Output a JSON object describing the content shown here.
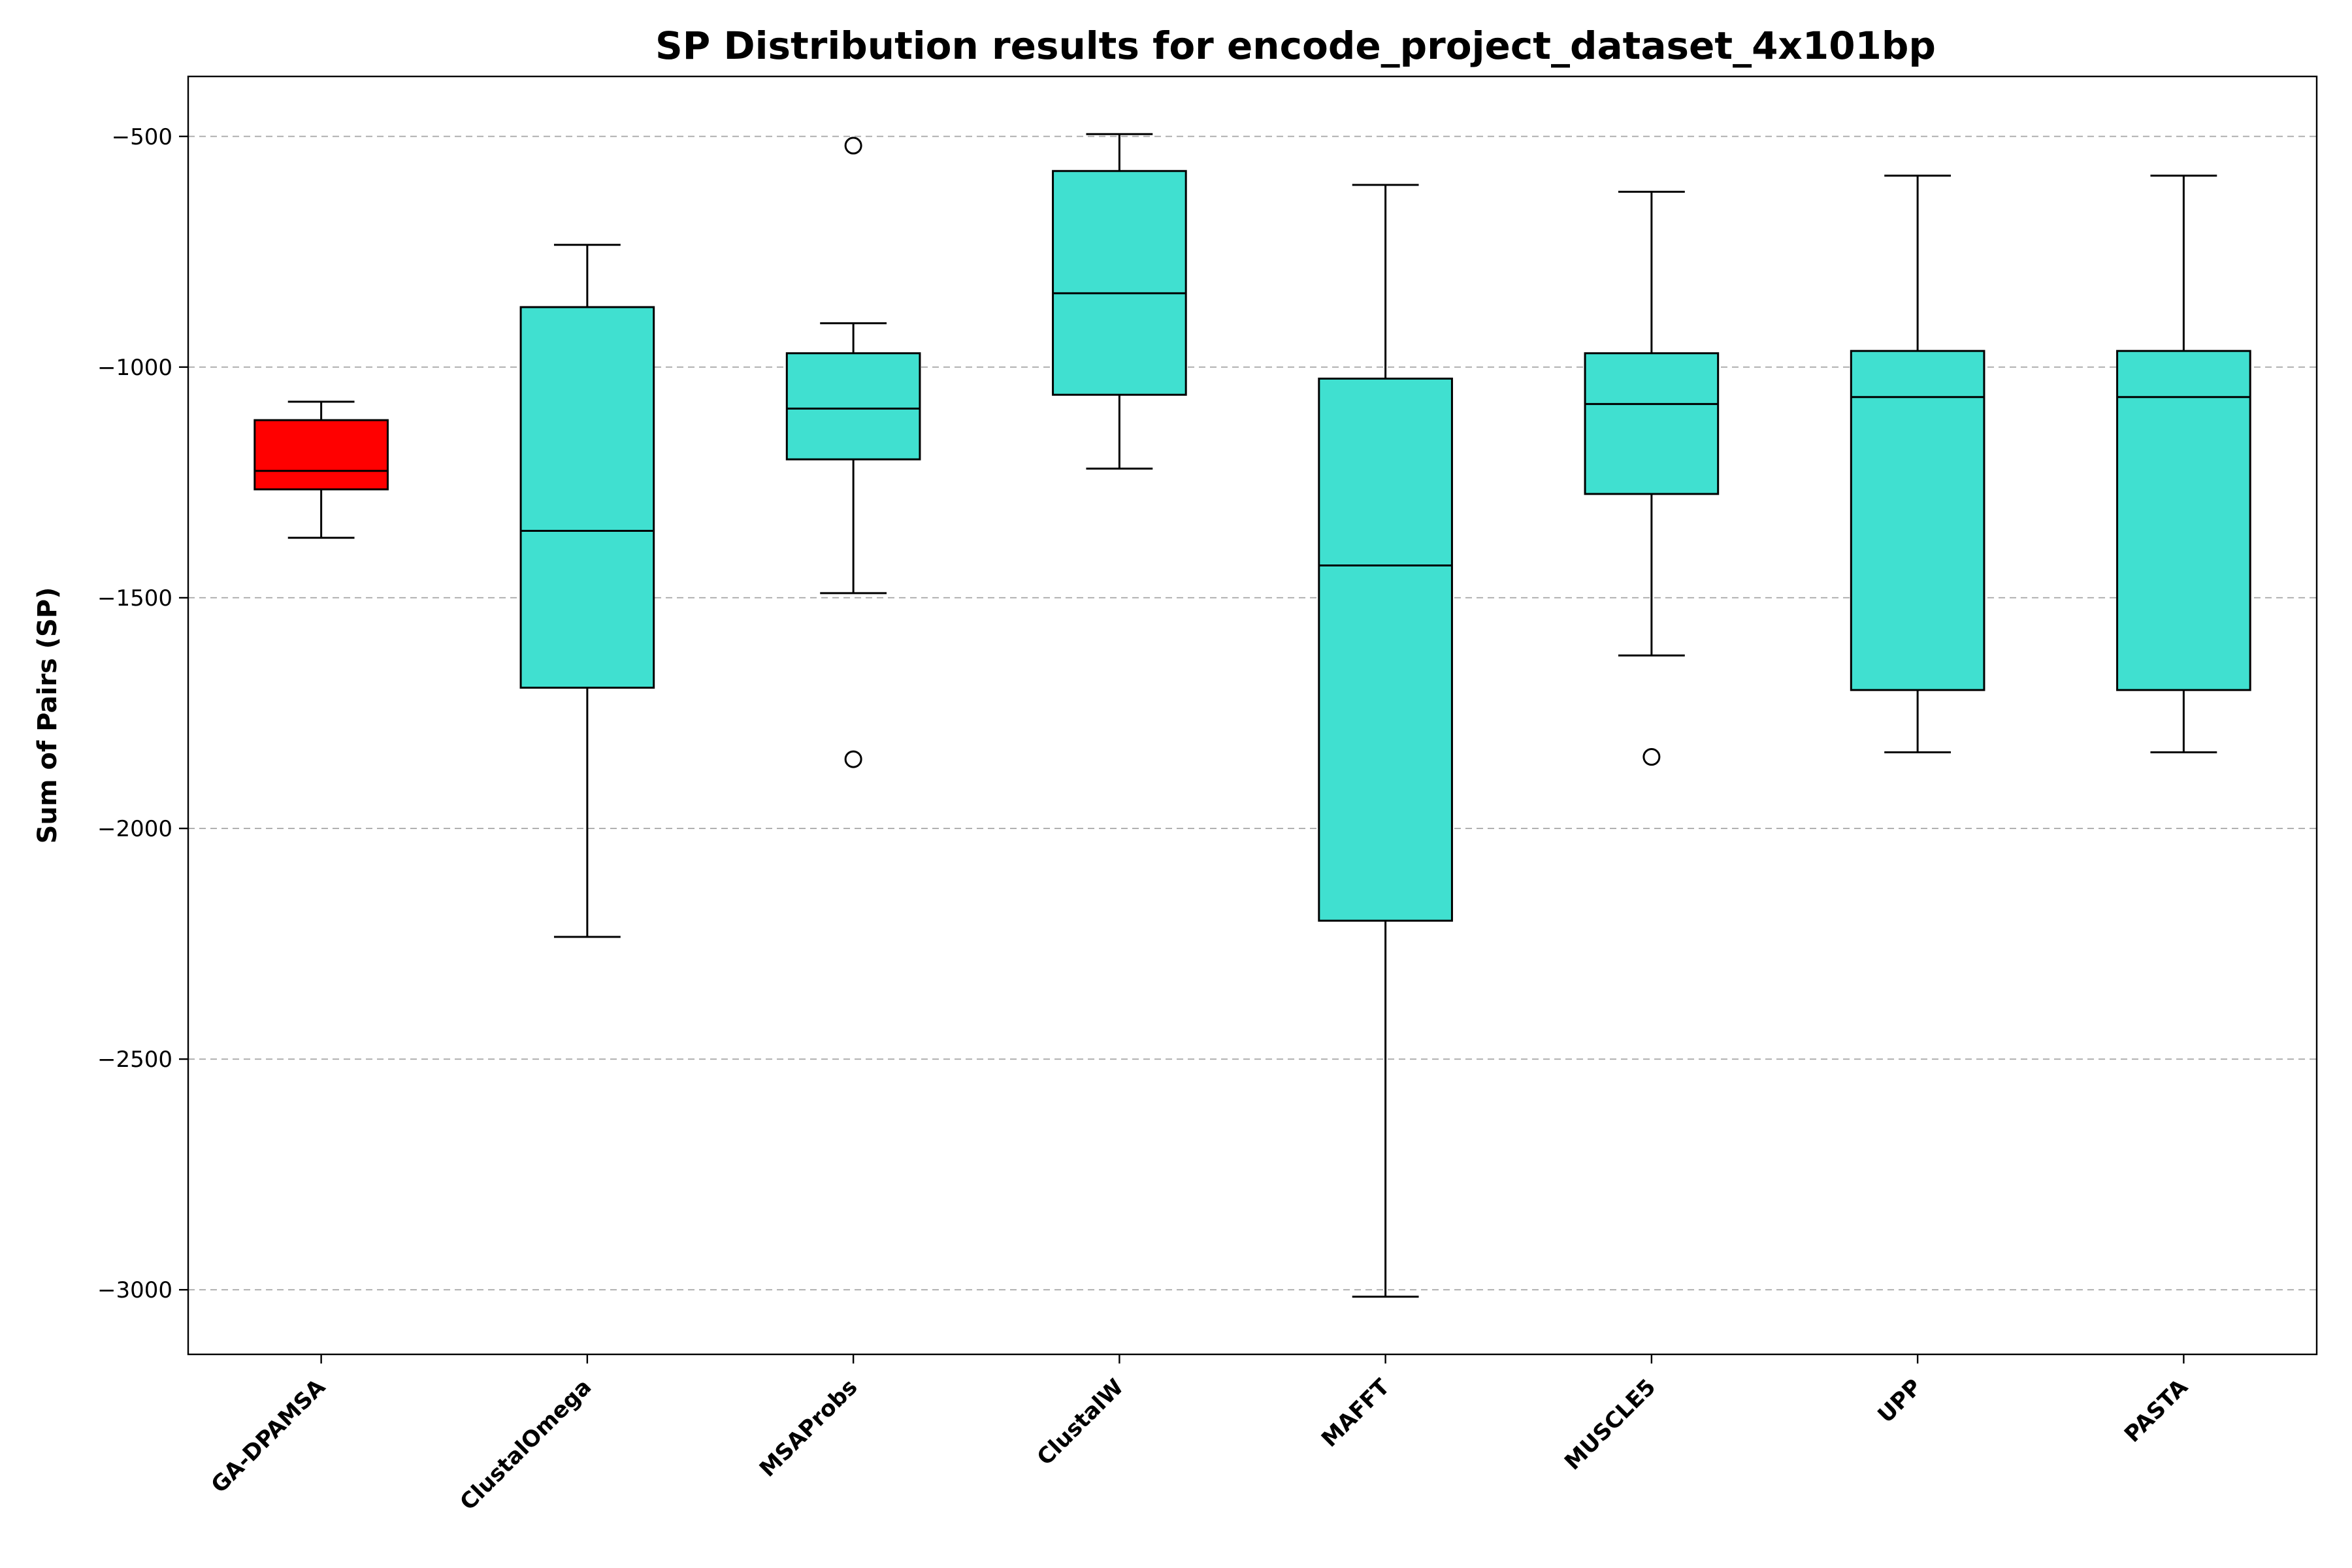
{
  "chart_data": {
    "type": "box",
    "title": "SP Distribution results for encode_project_dataset_4x101bp",
    "xlabel": "",
    "ylabel": "Sum of Pairs (SP)",
    "ylim": [
      -3140,
      -370
    ],
    "yticks": [
      -500,
      -1000,
      -1500,
      -2000,
      -2500,
      -3000
    ],
    "grid": "y-dashed",
    "categories": [
      "GA-DPAMSA",
      "ClustalOmega",
      "MSAProbs",
      "ClustalW",
      "MAFFT",
      "MUSCLE5",
      "UPP",
      "PASTA"
    ],
    "boxes": [
      {
        "label": "GA-DPAMSA",
        "whisker_low": -1370,
        "q1": -1265,
        "median": -1225,
        "q3": -1115,
        "whisker_high": -1075,
        "outliers": [],
        "color": "#ff0000"
      },
      {
        "label": "ClustalOmega",
        "whisker_low": -2235,
        "q1": -1695,
        "median": -1355,
        "q3": -870,
        "whisker_high": -735,
        "outliers": [],
        "color": "#40e0d0"
      },
      {
        "label": "MSAProbs",
        "whisker_low": -1490,
        "q1": -1200,
        "median": -1090,
        "q3": -970,
        "whisker_high": -905,
        "outliers": [
          -520,
          -1850
        ],
        "color": "#40e0d0"
      },
      {
        "label": "ClustalW",
        "whisker_low": -1220,
        "q1": -1060,
        "median": -840,
        "q3": -575,
        "whisker_high": -495,
        "outliers": [],
        "color": "#40e0d0"
      },
      {
        "label": "MAFFT",
        "whisker_low": -3015,
        "q1": -2200,
        "median": -1430,
        "q3": -1025,
        "whisker_high": -605,
        "outliers": [],
        "color": "#40e0d0"
      },
      {
        "label": "MUSCLE5",
        "whisker_low": -1625,
        "q1": -1275,
        "median": -1080,
        "q3": -970,
        "whisker_high": -620,
        "outliers": [
          -1845
        ],
        "color": "#40e0d0"
      },
      {
        "label": "UPP",
        "whisker_low": -1835,
        "q1": -1700,
        "median": -1065,
        "q3": -965,
        "whisker_high": -585,
        "outliers": [],
        "color": "#40e0d0"
      },
      {
        "label": "PASTA",
        "whisker_low": -1835,
        "q1": -1700,
        "median": -1065,
        "q3": -965,
        "whisker_high": -585,
        "outliers": [],
        "color": "#40e0d0"
      }
    ]
  }
}
